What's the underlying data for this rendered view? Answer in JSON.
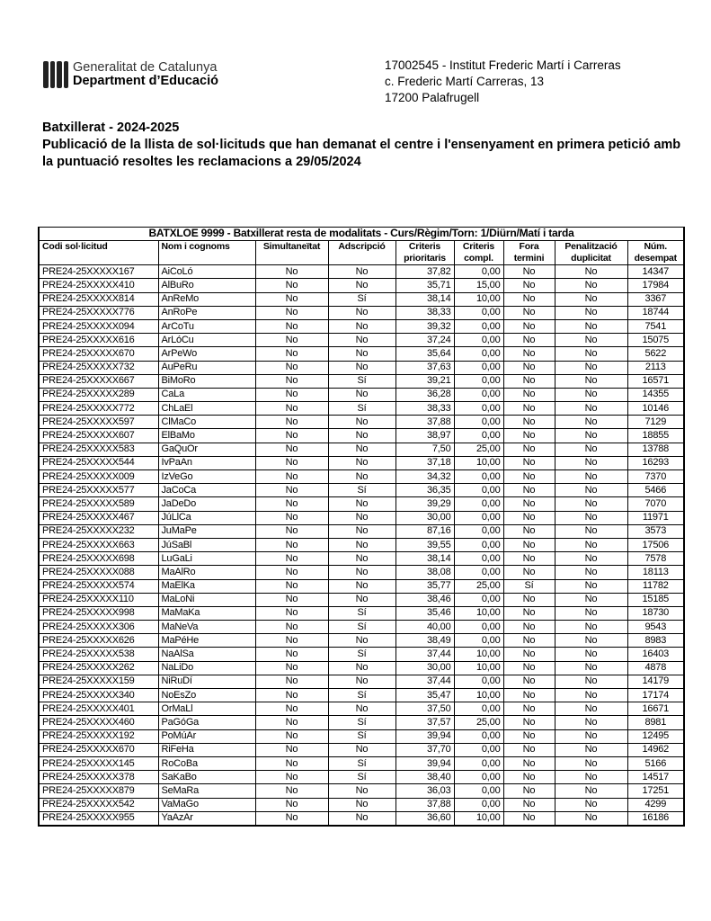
{
  "header": {
    "logo": {
      "line1": "Generalitat de Catalunya",
      "line2": "Department d’Educació"
    },
    "school": {
      "name": "17002545 - Institut Frederic Martí i Carreras",
      "address": "c. Frederic Martí Carreras, 13",
      "city": "17200 Palafrugell"
    }
  },
  "title": {
    "line1": "Batxillerat - 2024-2025",
    "line2": "Publicació de la llista de sol·licituds que han demanat el centre i l'ensenyament en primera petició amb la puntuació resoltes les reclamacions a 29/05/2024"
  },
  "table": {
    "caption": "BATXLOE 9999 - Batxillerat resta de modalitats    -  Curs/Règim/Torn:  1/Diürn/Matí i tarda",
    "columns": [
      "Codi sol·licitud",
      "Nom i cognoms",
      "Simultaneïtat",
      "Adscripció",
      "Criteris prioritaris",
      "Criteris compl.",
      "Fora termini",
      "Penalització duplicitat",
      "Núm. desempat"
    ],
    "rows": [
      [
        "PRE24-25XXXXX167",
        "AiCoLó",
        "No",
        "No",
        "37,82",
        "0,00",
        "No",
        "No",
        "14347"
      ],
      [
        "PRE24-25XXXXX410",
        "AlBuRo",
        "No",
        "No",
        "35,71",
        "15,00",
        "No",
        "No",
        "17984"
      ],
      [
        "PRE24-25XXXXX814",
        "AnReMo",
        "No",
        "Sí",
        "38,14",
        "10,00",
        "No",
        "No",
        "3367"
      ],
      [
        "PRE24-25XXXXX776",
        "AnRoPe",
        "No",
        "No",
        "38,33",
        "0,00",
        "No",
        "No",
        "18744"
      ],
      [
        "PRE24-25XXXXX094",
        "ArCoTu",
        "No",
        "No",
        "39,32",
        "0,00",
        "No",
        "No",
        "7541"
      ],
      [
        "PRE24-25XXXXX616",
        "ArLóCu",
        "No",
        "No",
        "37,24",
        "0,00",
        "No",
        "No",
        "15075"
      ],
      [
        "PRE24-25XXXXX670",
        "ArPeWo",
        "No",
        "No",
        "35,64",
        "0,00",
        "No",
        "No",
        "5622"
      ],
      [
        "PRE24-25XXXXX732",
        "AuPeRu",
        "No",
        "No",
        "37,63",
        "0,00",
        "No",
        "No",
        "2113"
      ],
      [
        "PRE24-25XXXXX667",
        "BiMoRo",
        "No",
        "Sí",
        "39,21",
        "0,00",
        "No",
        "No",
        "16571"
      ],
      [
        "PRE24-25XXXXX289",
        "CaLa",
        "No",
        "No",
        "36,28",
        "0,00",
        "No",
        "No",
        "14355"
      ],
      [
        "PRE24-25XXXXX772",
        "ChLaEl",
        "No",
        "Sí",
        "38,33",
        "0,00",
        "No",
        "No",
        "10146"
      ],
      [
        "PRE24-25XXXXX597",
        "ClMaCo",
        "No",
        "No",
        "37,88",
        "0,00",
        "No",
        "No",
        "7129"
      ],
      [
        "PRE24-25XXXXX607",
        "ElBaMo",
        "No",
        "No",
        "38,97",
        "0,00",
        "No",
        "No",
        "18855"
      ],
      [
        "PRE24-25XXXXX583",
        "GaQuOr",
        "No",
        "No",
        "7,50",
        "25,00",
        "No",
        "No",
        "13788"
      ],
      [
        "PRE24-25XXXXX544",
        "IvPaAn",
        "No",
        "No",
        "37,18",
        "10,00",
        "No",
        "No",
        "16293"
      ],
      [
        "PRE24-25XXXXX009",
        "IzVeGo",
        "No",
        "No",
        "34,32",
        "0,00",
        "No",
        "No",
        "7370"
      ],
      [
        "PRE24-25XXXXX577",
        "JaCoCa",
        "No",
        "Sí",
        "36,35",
        "0,00",
        "No",
        "No",
        "5466"
      ],
      [
        "PRE24-25XXXXX589",
        "JaDeDo",
        "No",
        "No",
        "39,29",
        "0,00",
        "No",
        "No",
        "7070"
      ],
      [
        "PRE24-25XXXXX467",
        "JúLlCa",
        "No",
        "No",
        "30,00",
        "0,00",
        "No",
        "No",
        "11971"
      ],
      [
        "PRE24-25XXXXX232",
        "JuMaPe",
        "No",
        "No",
        "87,16",
        "0,00",
        "No",
        "No",
        "3573"
      ],
      [
        "PRE24-25XXXXX663",
        "JúSaBl",
        "No",
        "No",
        "39,55",
        "0,00",
        "No",
        "No",
        "17506"
      ],
      [
        "PRE24-25XXXXX698",
        "LuGaLi",
        "No",
        "No",
        "38,14",
        "0,00",
        "No",
        "No",
        "7578"
      ],
      [
        "PRE24-25XXXXX088",
        "MaAlRo",
        "No",
        "No",
        "38,08",
        "0,00",
        "No",
        "No",
        "18113"
      ],
      [
        "PRE24-25XXXXX574",
        "MaElKa",
        "No",
        "No",
        "35,77",
        "25,00",
        "Sí",
        "No",
        "11782"
      ],
      [
        "PRE24-25XXXXX110",
        "MaLoNi",
        "No",
        "No",
        "38,46",
        "0,00",
        "No",
        "No",
        "15185"
      ],
      [
        "PRE24-25XXXXX998",
        "MaMaKa",
        "No",
        "Sí",
        "35,46",
        "10,00",
        "No",
        "No",
        "18730"
      ],
      [
        "PRE24-25XXXXX306",
        "MaNeVa",
        "No",
        "Sí",
        "40,00",
        "0,00",
        "No",
        "No",
        "9543"
      ],
      [
        "PRE24-25XXXXX626",
        "MaPéHe",
        "No",
        "No",
        "38,49",
        "0,00",
        "No",
        "No",
        "8983"
      ],
      [
        "PRE24-25XXXXX538",
        "NaAlSa",
        "No",
        "Sí",
        "37,44",
        "10,00",
        "No",
        "No",
        "16403"
      ],
      [
        "PRE24-25XXXXX262",
        "NaLiDo",
        "No",
        "No",
        "30,00",
        "10,00",
        "No",
        "No",
        "4878"
      ],
      [
        "PRE24-25XXXXX159",
        "NiRuDí",
        "No",
        "No",
        "37,44",
        "0,00",
        "No",
        "No",
        "14179"
      ],
      [
        "PRE24-25XXXXX340",
        "NoEsZo",
        "No",
        "Sí",
        "35,47",
        "10,00",
        "No",
        "No",
        "17174"
      ],
      [
        "PRE24-25XXXXX401",
        "OrMaLl",
        "No",
        "No",
        "37,50",
        "0,00",
        "No",
        "No",
        "16671"
      ],
      [
        "PRE24-25XXXXX460",
        "PaGóGa",
        "No",
        "Sí",
        "37,57",
        "25,00",
        "No",
        "No",
        "8981"
      ],
      [
        "PRE24-25XXXXX192",
        "PoMúAr",
        "No",
        "Sí",
        "39,94",
        "0,00",
        "No",
        "No",
        "12495"
      ],
      [
        "PRE24-25XXXXX670",
        "RiFeHa",
        "No",
        "No",
        "37,70",
        "0,00",
        "No",
        "No",
        "14962"
      ],
      [
        "PRE24-25XXXXX145",
        "RoCoBa",
        "No",
        "Sí",
        "39,94",
        "0,00",
        "No",
        "No",
        "5166"
      ],
      [
        "PRE24-25XXXXX378",
        "SaKaBo",
        "No",
        "Sí",
        "38,40",
        "0,00",
        "No",
        "No",
        "14517"
      ],
      [
        "PRE24-25XXXXX879",
        "SeMaRa",
        "No",
        "No",
        "36,03",
        "0,00",
        "No",
        "No",
        "17251"
      ],
      [
        "PRE24-25XXXXX542",
        "VaMaGo",
        "No",
        "No",
        "37,88",
        "0,00",
        "No",
        "No",
        "4299"
      ],
      [
        "PRE24-25XXXXX955",
        "YaAzAr",
        "No",
        "No",
        "36,60",
        "10,00",
        "No",
        "No",
        "16186"
      ]
    ]
  }
}
